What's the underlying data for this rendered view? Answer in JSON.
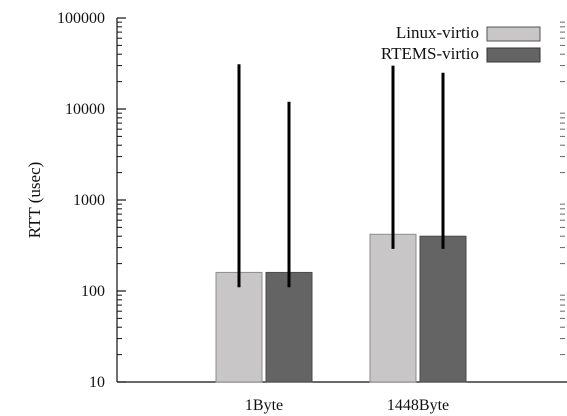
{
  "chart_data": {
    "type": "bar",
    "title": "",
    "xlabel": "",
    "ylabel": "RTT (usec)",
    "yscale": "log",
    "ylim": [
      10,
      100000
    ],
    "yticks": [
      10,
      100,
      1000,
      10000,
      100000
    ],
    "ytick_labels": [
      "10",
      "100",
      "1000",
      "10000",
      "100000"
    ],
    "categories": [
      "1Byte",
      "1448Byte"
    ],
    "series": [
      {
        "name": "Linux-virtio",
        "color": "#c8c6c6",
        "values": [
          160,
          420
        ],
        "error_low": [
          110,
          290
        ],
        "error_high": [
          31000,
          30000
        ]
      },
      {
        "name": "RTEMS-virtio",
        "color": "#646464",
        "values": [
          160,
          400
        ],
        "error_low": [
          110,
          290
        ],
        "error_high": [
          12000,
          25000
        ]
      }
    ],
    "legend_position": "top-right",
    "grid": false
  }
}
